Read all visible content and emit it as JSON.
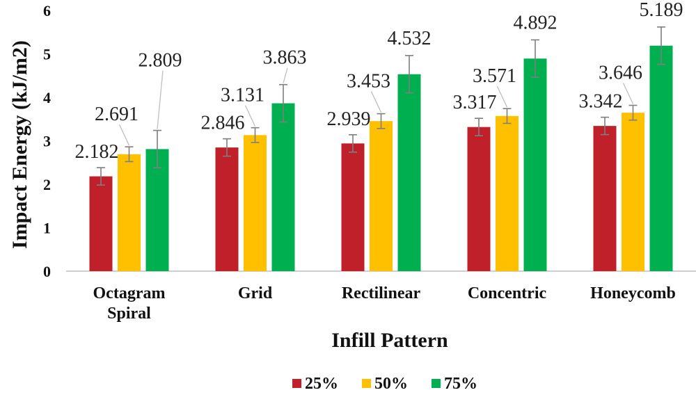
{
  "chart_data": {
    "type": "bar",
    "title": "",
    "xlabel": "Infill Pattern",
    "ylabel": "Impact Energy (kJ/m2)",
    "ylim": [
      0,
      6
    ],
    "yticks": [
      "0",
      "1",
      "2",
      "3",
      "4",
      "5",
      "6"
    ],
    "categories": [
      [
        "Octagram",
        "Spiral"
      ],
      [
        "Grid"
      ],
      [
        "Rectilinear"
      ],
      [
        "Concentric"
      ],
      [
        "Honeycomb"
      ]
    ],
    "legend_position": "bottom",
    "series": [
      {
        "name": "25%",
        "color": "#c0202a",
        "values": [
          2.182,
          2.846,
          2.939,
          3.317,
          3.342
        ],
        "labels": [
          "2.182",
          "2.846",
          "2.939",
          "3.317",
          "3.342"
        ],
        "errors": [
          0.2,
          0.2,
          0.2,
          0.2,
          0.2
        ]
      },
      {
        "name": "50%",
        "color": "#ffc000",
        "values": [
          2.691,
          3.131,
          3.453,
          3.571,
          3.646
        ],
        "labels": [
          "2.691",
          "3.131",
          "3.453",
          "3.571",
          "3.646"
        ],
        "errors": [
          0.17,
          0.17,
          0.17,
          0.17,
          0.17
        ]
      },
      {
        "name": "75%",
        "color": "#00b050",
        "values": [
          2.809,
          3.863,
          4.532,
          4.892,
          5.189
        ],
        "labels": [
          "2.809",
          "3.863",
          "4.532",
          "4.892",
          "5.189"
        ],
        "errors": [
          0.43,
          0.43,
          0.43,
          0.43,
          0.43
        ]
      }
    ]
  }
}
